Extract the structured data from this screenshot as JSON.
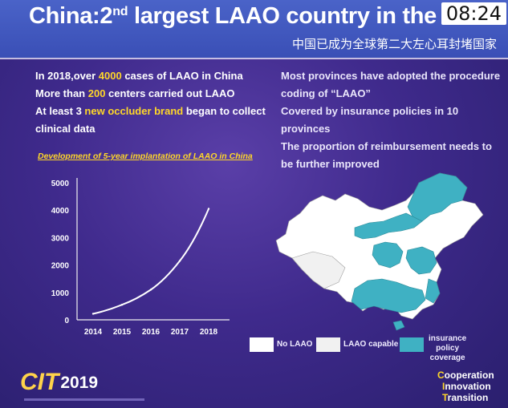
{
  "slide": {
    "title_prefix": "China:2",
    "title_sup": "nd",
    "title_suffix": " largest LAAO country in the wo",
    "clock": "08:24",
    "subtitle_cn": "中国已成为全球第二大左心耳封堵国家"
  },
  "left_points": {
    "line1_a": "In 2018,over ",
    "line1_hl": "4000",
    "line1_b": " cases of LAAO in China",
    "line2_a": "More than ",
    "line2_hl": "200",
    "line2_b": " centers carried out LAAO",
    "line3_a": "At least 3 ",
    "line3_hl": "new occluder brand",
    "line3_b": " began to collect",
    "line4": "clinical data"
  },
  "right_points": [
    "Most provinces have adopted the procedure",
    "coding of “LAAO”",
    "Covered by insurance policies in 10 provinces",
    "The proportion of reimbursement needs to",
    "be further improved"
  ],
  "chart_data": {
    "type": "line",
    "title": "Development of 5-year implantation of LAAO in China",
    "categories": [
      "2014",
      "2015",
      "2016",
      "2017",
      "2018"
    ],
    "values": [
      220,
      550,
      1100,
      2150,
      4050
    ],
    "ylim": [
      0,
      5000
    ],
    "yticks": [
      0,
      1000,
      2000,
      3000,
      4000,
      5000
    ],
    "grid": false,
    "line_color": "#ffffff"
  },
  "legend": {
    "no_laao": "No LAAO",
    "capable": "LAAO capable",
    "insurance_1": "insurance policy",
    "insurance_2": "coverage",
    "color_no": "#ffffff",
    "color_capable": "#f1f1f1",
    "color_insurance": "#3fb1c3"
  },
  "footer": {
    "logo_text": "CIT",
    "logo_year": "2019",
    "words": [
      {
        "cap": "C",
        "rest": "ooperation"
      },
      {
        "cap": "I",
        "rest": "nnovation"
      },
      {
        "cap": "T",
        "rest": "ransition"
      }
    ]
  }
}
